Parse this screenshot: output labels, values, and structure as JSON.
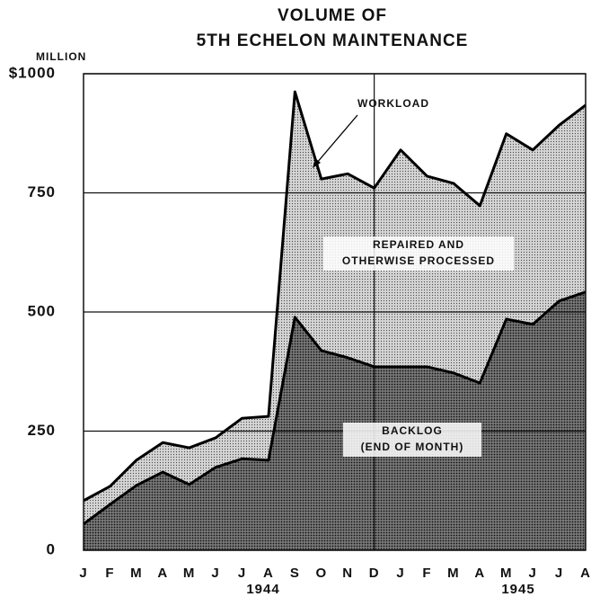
{
  "chart_data": {
    "type": "area",
    "title": [
      "VOLUME OF",
      "5TH ECHELON MAINTENANCE"
    ],
    "y_unit_label": "MILLION",
    "categories": [
      "J",
      "F",
      "M",
      "A",
      "M",
      "J",
      "J",
      "A",
      "S",
      "O",
      "N",
      "D",
      "J",
      "F",
      "M",
      "A",
      "M",
      "J",
      "J",
      "A"
    ],
    "year_labels": [
      "1944",
      "1945"
    ],
    "series": [
      {
        "name": "WORKLOAD",
        "color": "#d4d4d4",
        "values": [
          104,
          134,
          189,
          226,
          215,
          236,
          277,
          281,
          962,
          779,
          790,
          760,
          840,
          785,
          770,
          723,
          874,
          840,
          892,
          934
        ]
      },
      {
        "name": "BACKLOG",
        "color": "#7a7a7a",
        "values": [
          55,
          96,
          136,
          164,
          138,
          174,
          192,
          189,
          489,
          419,
          404,
          385,
          385,
          385,
          372,
          351,
          485,
          474,
          523,
          542
        ]
      }
    ],
    "annotations": {
      "workload": "WORKLOAD",
      "repaired": [
        "REPAIRED AND",
        "OTHERWISE PROCESSED"
      ],
      "backlog": [
        "BACKLOG",
        "(END OF MONTH)"
      ]
    },
    "ylim": [
      0,
      1000
    ],
    "yticks": [
      0,
      250,
      500,
      750,
      {
        "value": 1000,
        "label": "$1000"
      }
    ],
    "grid": true
  }
}
